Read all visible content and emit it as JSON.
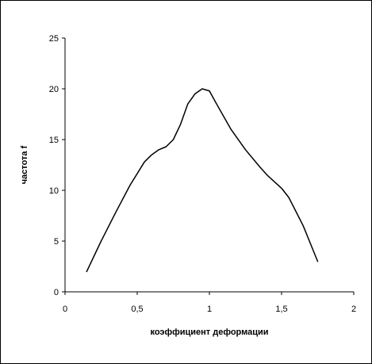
{
  "chart_data": {
    "type": "line",
    "title": "",
    "xlabel": "коэффициент деформации",
    "ylabel": "частота f",
    "xlim": [
      0,
      2
    ],
    "ylim": [
      0,
      25
    ],
    "x_ticks": [
      0,
      0.5,
      1,
      1.5,
      2
    ],
    "x_tick_labels": [
      "0",
      "0,5",
      "1",
      "1,5",
      "2"
    ],
    "y_ticks": [
      0,
      5,
      10,
      15,
      20,
      25
    ],
    "y_tick_labels": [
      "0",
      "5",
      "10",
      "15",
      "20",
      "25"
    ],
    "grid": false,
    "legend": "none",
    "line_color": "#000000",
    "series": [
      {
        "x": [
          0.15,
          0.25,
          0.35,
          0.45,
          0.55,
          0.6,
          0.65,
          0.7,
          0.75,
          0.8,
          0.85,
          0.9,
          0.95,
          1.0,
          1.05,
          1.15,
          1.25,
          1.35,
          1.4,
          1.5,
          1.55,
          1.65,
          1.75
        ],
        "y": [
          2,
          5,
          7.8,
          10.5,
          12.8,
          13.5,
          14,
          14.3,
          15,
          16.5,
          18.5,
          19.5,
          20,
          19.8,
          18.5,
          16,
          14,
          12.3,
          11.5,
          10.2,
          9.3,
          6.5,
          3
        ]
      }
    ]
  }
}
